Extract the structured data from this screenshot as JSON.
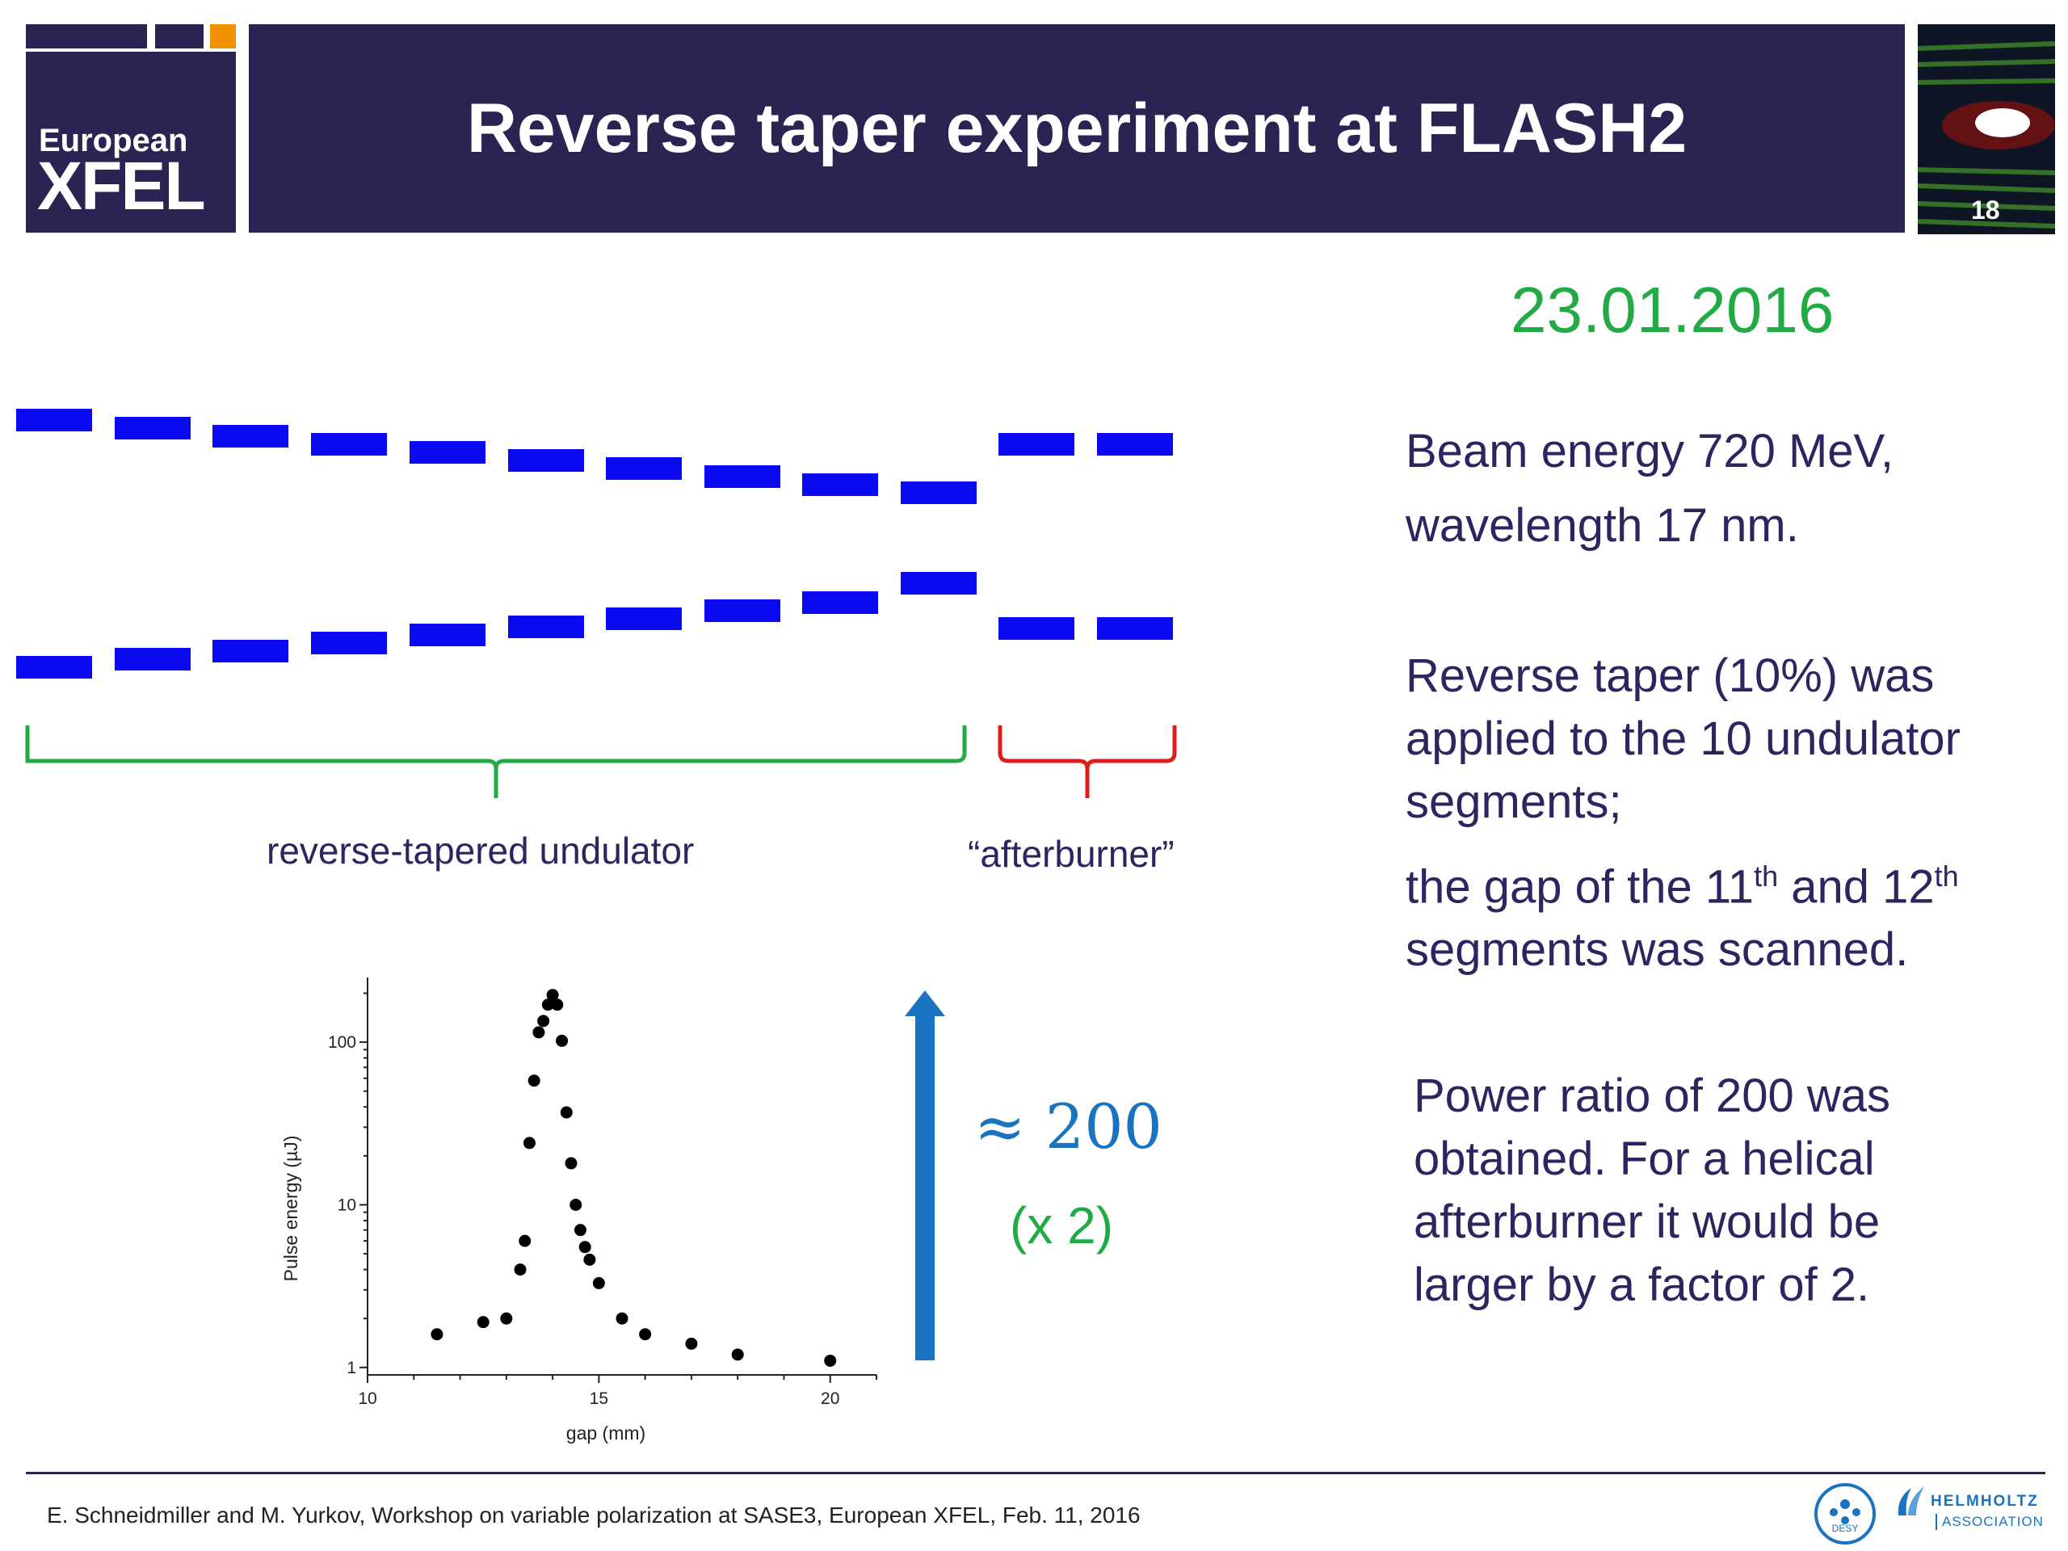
{
  "header": {
    "logo_line1": "European",
    "logo_line2": "XFEL",
    "title": "Reverse taper experiment at FLASH2",
    "page_number": "18"
  },
  "date": "23.01.2016",
  "labels": {
    "reverse_tapered": "reverse-tapered undulator",
    "afterburner": "“afterburner”"
  },
  "annotation": {
    "ratio": "≈ 200",
    "factor": "(x 2)"
  },
  "right_text": {
    "p1_line1": "Beam energy 720 MeV,",
    "p1_line2": "wavelength 17 nm.",
    "p2_line1": "Reverse taper (10%) was",
    "p2_line2": "applied to the 10 undulator",
    "p2_line3": "segments;",
    "p2_line4a": "the gap of the 11",
    "p2_sup1": "th",
    "p2_line4b": " and 12",
    "p2_sup2": "th",
    "p2_line5": "segments was scanned.",
    "p3_line1": "Power ratio of 200 was",
    "p3_line2": "obtained. For a helical",
    "p3_line3": "afterburner it would be",
    "p3_line4": "larger by a factor of 2."
  },
  "footer": {
    "text": "E. Schneidmiller and M. Yurkov, Workshop on variable polarization at SASE3, European XFEL, Feb. 11, 2016",
    "desy": "DESY",
    "helmholtz1": "HELMHOLTZ",
    "helmholtz2": "ASSOCIATION"
  },
  "colors": {
    "navy": "#2b2453",
    "magnet_blue": "#0a0af0",
    "green": "#22aa44",
    "red": "#e01b1b",
    "arrow_blue": "#1a73c0",
    "orange": "#f39200"
  },
  "chart_data": {
    "type": "scatter",
    "xlabel": "gap (mm)",
    "ylabel": "Pulse energy (µJ)",
    "xlim": [
      10,
      21
    ],
    "ylim": [
      0.9,
      250
    ],
    "yscale": "log",
    "x_ticks": [
      "10",
      "15",
      "20"
    ],
    "y_ticks": [
      "1",
      "10",
      "100"
    ],
    "points": [
      {
        "x": 11.5,
        "y": 1.6
      },
      {
        "x": 12.5,
        "y": 1.9
      },
      {
        "x": 13.0,
        "y": 2.0
      },
      {
        "x": 13.3,
        "y": 4.0
      },
      {
        "x": 13.4,
        "y": 6.0
      },
      {
        "x": 13.5,
        "y": 24
      },
      {
        "x": 13.6,
        "y": 58
      },
      {
        "x": 13.7,
        "y": 115
      },
      {
        "x": 13.8,
        "y": 135
      },
      {
        "x": 13.9,
        "y": 170
      },
      {
        "x": 14.0,
        "y": 195
      },
      {
        "x": 14.1,
        "y": 170
      },
      {
        "x": 14.2,
        "y": 102
      },
      {
        "x": 14.3,
        "y": 37
      },
      {
        "x": 14.4,
        "y": 18
      },
      {
        "x": 14.5,
        "y": 10
      },
      {
        "x": 14.6,
        "y": 7.0
      },
      {
        "x": 14.7,
        "y": 5.5
      },
      {
        "x": 14.8,
        "y": 4.6
      },
      {
        "x": 15.0,
        "y": 3.3
      },
      {
        "x": 15.5,
        "y": 2.0
      },
      {
        "x": 16.0,
        "y": 1.6
      },
      {
        "x": 17.0,
        "y": 1.4
      },
      {
        "x": 18.0,
        "y": 1.2
      },
      {
        "x": 20.0,
        "y": 1.1
      }
    ]
  }
}
